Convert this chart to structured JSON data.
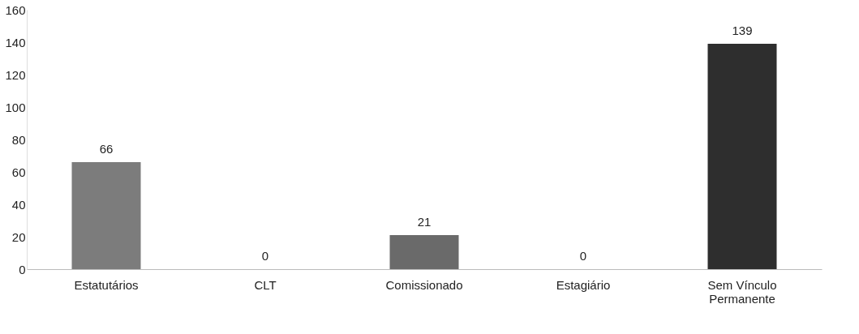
{
  "chart_data": {
    "type": "bar",
    "categories": [
      "Estatutários",
      "CLT",
      "Comissionado",
      "Estagiário",
      "Sem Vínculo Permanente"
    ],
    "values": [
      66,
      0,
      21,
      0,
      139
    ],
    "colors": [
      "#7c7c7c",
      "#7c7c7c",
      "#6a6a6a",
      "#7c7c7c",
      "#2e2e2e"
    ],
    "ylim": [
      0,
      160
    ],
    "yticks": [
      0,
      20,
      40,
      60,
      80,
      100,
      120,
      140,
      160
    ],
    "grid": false,
    "data_labels": true
  }
}
